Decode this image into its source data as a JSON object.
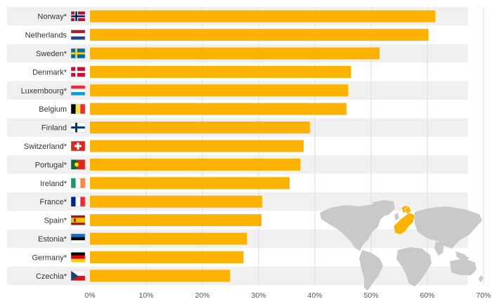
{
  "chart_data": {
    "type": "bar",
    "orientation": "horizontal",
    "title": "",
    "xlabel": "",
    "ylabel": "",
    "xlim": [
      0,
      70
    ],
    "grid": true,
    "legend": "none",
    "bar_color": "#FBB200",
    "categories": [
      "Norway*",
      "Netherlands",
      "Sweden*",
      "Denmark*",
      "Luxembourg*",
      "Belgium",
      "Finland",
      "Switzerland*",
      "Portugal*",
      "Ireland*",
      "France*",
      "Spain*",
      "Estonia*",
      "Germany*",
      "Czechia*"
    ],
    "values": [
      61.4,
      60.2,
      51.5,
      46.4,
      45.9,
      45.6,
      39.1,
      38.0,
      37.4,
      35.5,
      30.6,
      30.5,
      27.9,
      27.3,
      24.9
    ],
    "flags": [
      "flag-norway-icon",
      "flag-netherlands-icon",
      "flag-sweden-icon",
      "flag-denmark-icon",
      "flag-luxembourg-icon",
      "flag-belgium-icon",
      "flag-finland-icon",
      "flag-switzerland-icon",
      "flag-portugal-icon",
      "flag-ireland-icon",
      "flag-france-icon",
      "flag-spain-icon",
      "flag-estonia-icon",
      "flag-germany-icon",
      "flag-czechia-icon"
    ],
    "x_ticks": [
      "0%",
      "10%",
      "20%",
      "30%",
      "40%",
      "50%",
      "60%",
      "70%"
    ],
    "decoration": "world-map-icon highlighting Europe"
  }
}
